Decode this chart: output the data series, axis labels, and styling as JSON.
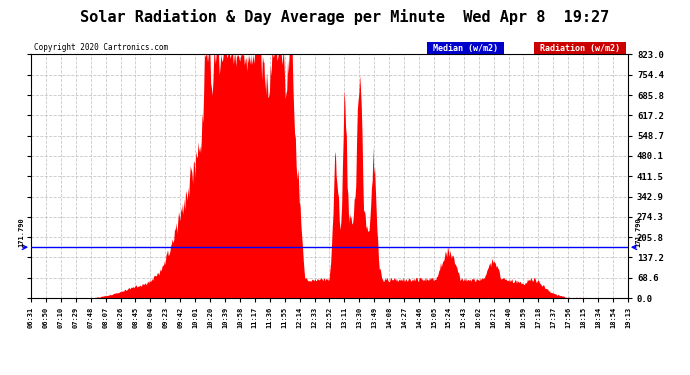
{
  "title": "Solar Radiation & Day Average per Minute  Wed Apr 8  19:27",
  "copyright": "Copyright 2020 Cartronics.com",
  "legend_median_label": "Median (w/m2)",
  "legend_radiation_label": "Radiation (w/m2)",
  "median_value": 171.79,
  "y_max": 823.0,
  "y_min": 0.0,
  "y_ticks": [
    0.0,
    68.6,
    137.2,
    205.8,
    274.3,
    342.9,
    411.5,
    480.1,
    548.7,
    617.2,
    685.8,
    754.4,
    823.0
  ],
  "bar_color": "#FF0000",
  "median_color": "#0000FF",
  "background_color": "#FFFFFF",
  "grid_color": "#C8C8C8",
  "title_fontsize": 11,
  "x_labels": [
    "06:31",
    "06:50",
    "07:10",
    "07:29",
    "07:48",
    "08:07",
    "08:26",
    "08:45",
    "09:04",
    "09:23",
    "09:42",
    "10:01",
    "10:20",
    "10:39",
    "10:58",
    "11:17",
    "11:36",
    "11:55",
    "12:14",
    "12:33",
    "12:52",
    "13:11",
    "13:30",
    "13:49",
    "14:08",
    "14:27",
    "14:46",
    "15:05",
    "15:24",
    "15:43",
    "16:02",
    "16:21",
    "16:40",
    "16:59",
    "17:18",
    "17:37",
    "17:56",
    "18:15",
    "18:34",
    "18:54",
    "19:13"
  ],
  "n_points": 762,
  "median_label": "171.790"
}
